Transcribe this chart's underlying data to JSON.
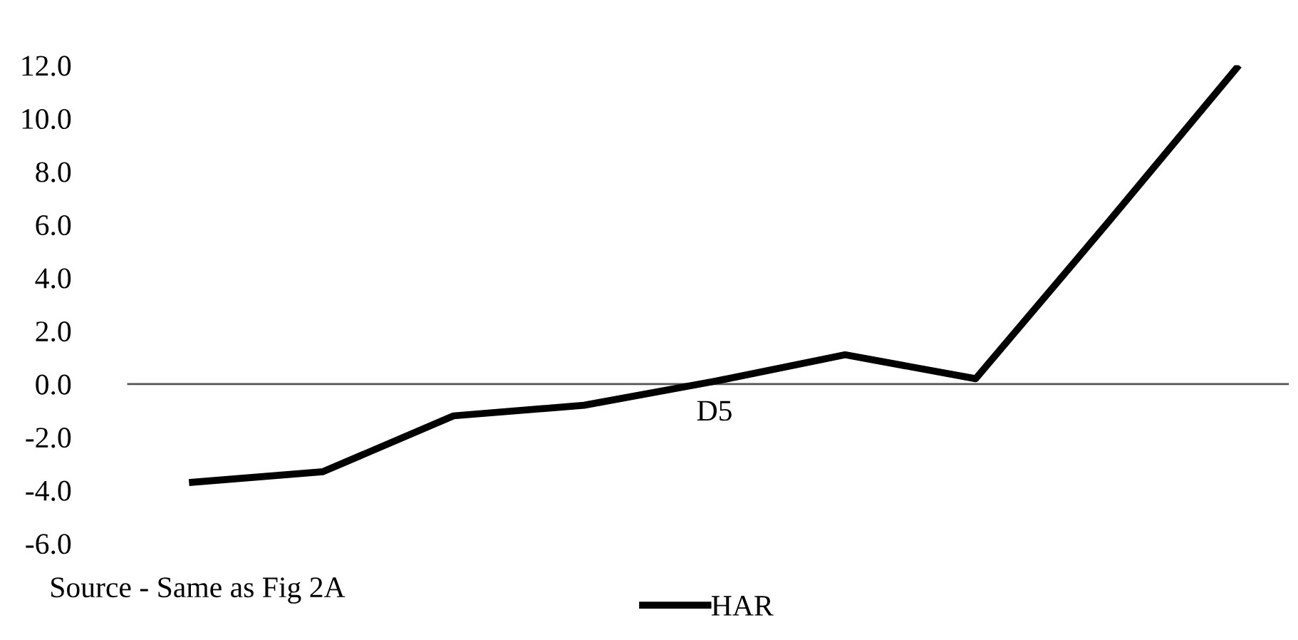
{
  "chart_data": {
    "type": "line",
    "categories": [
      null,
      null,
      null,
      null,
      "D5",
      null,
      null,
      null,
      null
    ],
    "series": [
      {
        "name": "HAR",
        "color": "#000000",
        "values": [
          -3.7,
          -3.3,
          -1.2,
          -0.8,
          0.1,
          1.1,
          0.2,
          6.0,
          11.9
        ]
      }
    ],
    "ylim": [
      -6,
      12
    ],
    "yticks": [
      {
        "value": -6,
        "label": "-6.0"
      },
      {
        "value": -4,
        "label": "-4.0"
      },
      {
        "value": -2,
        "label": "-2.0"
      },
      {
        "value": 0,
        "label": "0.0"
      },
      {
        "value": 2,
        "label": "2.0"
      },
      {
        "value": 4,
        "label": "4.0"
      },
      {
        "value": 6,
        "label": "6.0"
      },
      {
        "value": 8,
        "label": "8.0"
      },
      {
        "value": 10,
        "label": "10.0"
      },
      {
        "value": 12,
        "label": "12.0"
      }
    ],
    "ref_lines": [
      {
        "axis": "y",
        "value": 0,
        "color": "#555555"
      }
    ],
    "legend": "bottom",
    "marker": "none",
    "line_style": "solid",
    "annotations": [
      "Source - Same as Fig 2A"
    ]
  }
}
